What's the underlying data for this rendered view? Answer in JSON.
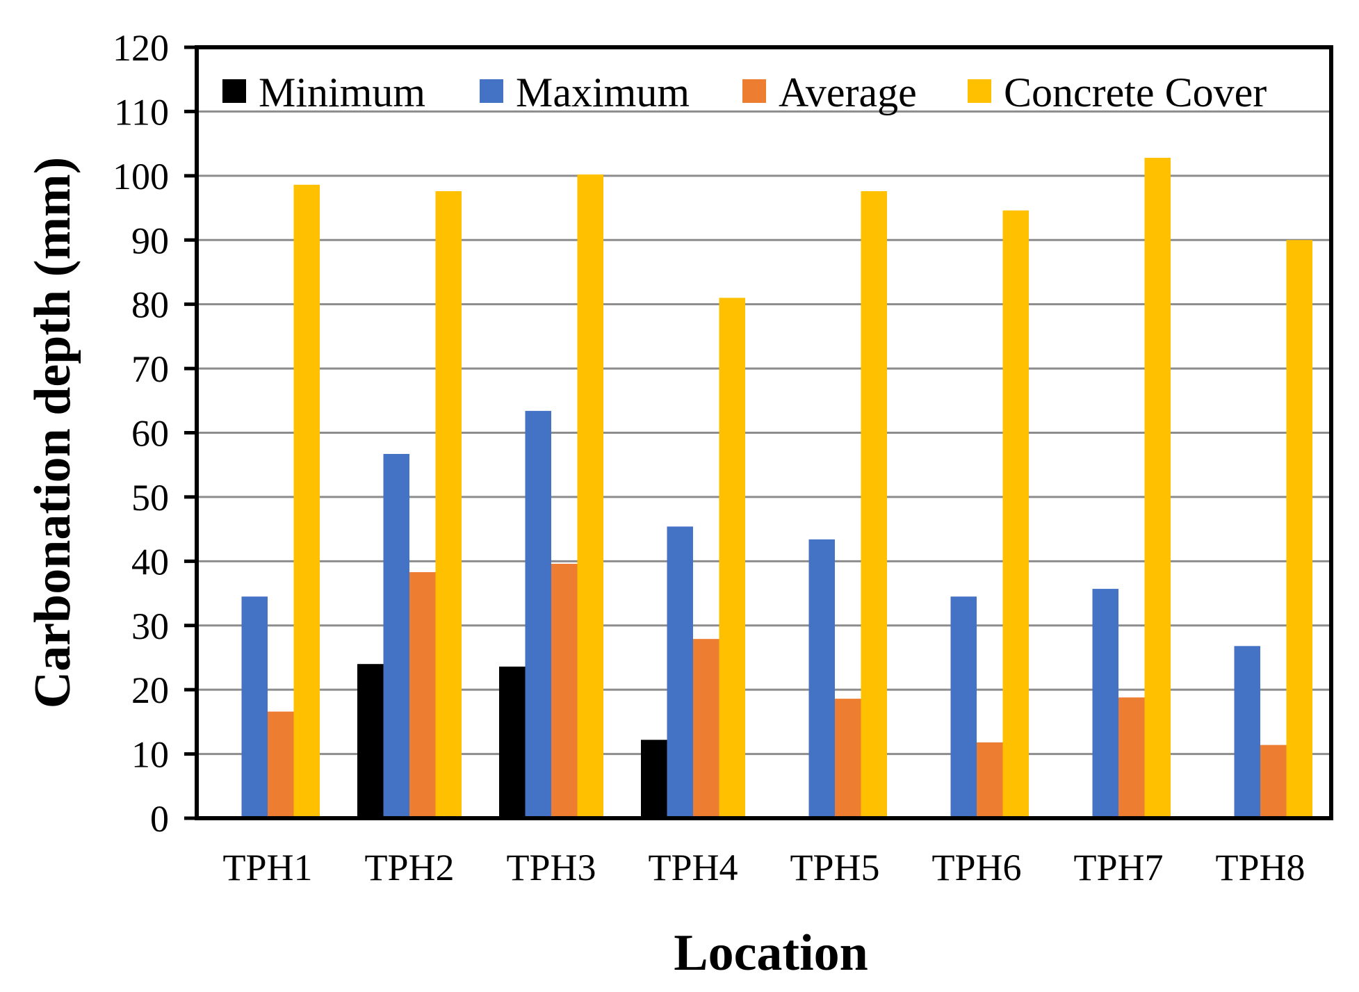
{
  "chart_data": {
    "type": "bar",
    "title": "",
    "xlabel": "Location",
    "ylabel": "Carbonation depth (mm)",
    "ylim": [
      0,
      120
    ],
    "ytick_step": 10,
    "yticks": [
      "0",
      "10",
      "20",
      "30",
      "40",
      "50",
      "60",
      "70",
      "80",
      "90",
      "100",
      "110",
      "120"
    ],
    "grid": true,
    "legend_position": "top",
    "categories": [
      "TPH1",
      "TPH2",
      "TPH3",
      "TPH4",
      "TPH5",
      "TPH6",
      "TPH7",
      "TPH8"
    ],
    "series": [
      {
        "name": "Minimum",
        "color": "#000000",
        "values": [
          0,
          24,
          23.6,
          12.2,
          0,
          0,
          0,
          0
        ]
      },
      {
        "name": "Maximum",
        "color": "#4472C4",
        "values": [
          34.5,
          56.7,
          63.4,
          45.4,
          43.4,
          34.5,
          35.7,
          26.8
        ]
      },
      {
        "name": "Average",
        "color": "#ED7D31",
        "values": [
          16.6,
          38.3,
          39.6,
          27.9,
          18.6,
          11.8,
          18.8,
          11.4
        ]
      },
      {
        "name": "Concrete Cover",
        "color": "#FFC000",
        "values": [
          98.6,
          97.6,
          100.2,
          81,
          97.6,
          94.6,
          102.8,
          90
        ]
      }
    ]
  }
}
